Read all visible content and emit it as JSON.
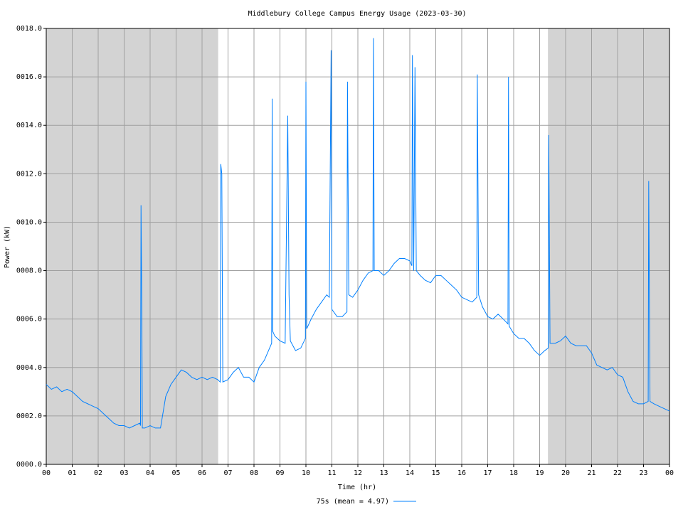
{
  "chart_data": {
    "type": "line",
    "title": "Middlebury College Campus Energy Usage (2023-03-30)",
    "x_label": "Time (hr)",
    "y_label": "Power (kW)",
    "xlim": [
      0,
      24
    ],
    "ylim": [
      0,
      18
    ],
    "xticks": [
      {
        "value": 0,
        "label": "00"
      },
      {
        "value": 1,
        "label": "01"
      },
      {
        "value": 2,
        "label": "02"
      },
      {
        "value": 3,
        "label": "03"
      },
      {
        "value": 4,
        "label": "04"
      },
      {
        "value": 5,
        "label": "05"
      },
      {
        "value": 6,
        "label": "06"
      },
      {
        "value": 7,
        "label": "07"
      },
      {
        "value": 8,
        "label": "08"
      },
      {
        "value": 9,
        "label": "09"
      },
      {
        "value": 10,
        "label": "10"
      },
      {
        "value": 11,
        "label": "11"
      },
      {
        "value": 12,
        "label": "12"
      },
      {
        "value": 13,
        "label": "13"
      },
      {
        "value": 14,
        "label": "14"
      },
      {
        "value": 15,
        "label": "15"
      },
      {
        "value": 16,
        "label": "16"
      },
      {
        "value": 17,
        "label": "17"
      },
      {
        "value": 18,
        "label": "18"
      },
      {
        "value": 19,
        "label": "19"
      },
      {
        "value": 20,
        "label": "20"
      },
      {
        "value": 21,
        "label": "21"
      },
      {
        "value": 22,
        "label": "22"
      },
      {
        "value": 23,
        "label": "23"
      },
      {
        "value": 24,
        "label": "00"
      }
    ],
    "yticks": [
      {
        "value": 0,
        "label": "0000.0"
      },
      {
        "value": 2,
        "label": "0002.0"
      },
      {
        "value": 4,
        "label": "0004.0"
      },
      {
        "value": 6,
        "label": "0006.0"
      },
      {
        "value": 8,
        "label": "0008.0"
      },
      {
        "value": 10,
        "label": "0010.0"
      },
      {
        "value": 12,
        "label": "0012.0"
      },
      {
        "value": 14,
        "label": "0014.0"
      },
      {
        "value": 16,
        "label": "0016.0"
      },
      {
        "value": 18,
        "label": "0018.0"
      }
    ],
    "grid": true,
    "shaded_regions": [
      [
        0,
        6.62
      ],
      [
        19.32,
        24
      ]
    ],
    "shade_color": "#d3d3d3",
    "legend": "bottom",
    "x": [
      0,
      0.2,
      0.4,
      0.6,
      0.8,
      1.0,
      1.2,
      1.4,
      1.6,
      1.8,
      2.0,
      2.2,
      2.4,
      2.6,
      2.8,
      3.0,
      3.2,
      3.4,
      3.6,
      3.63,
      3.65,
      3.68,
      3.7,
      3.8,
      4.0,
      4.2,
      4.4,
      4.6,
      4.8,
      5.0,
      5.2,
      5.4,
      5.6,
      5.8,
      6.0,
      6.2,
      6.4,
      6.6,
      6.7,
      6.72,
      6.76,
      6.8,
      7.0,
      7.2,
      7.4,
      7.6,
      7.8,
      8.0,
      8.2,
      8.4,
      8.6,
      8.68,
      8.7,
      8.72,
      8.8,
      9.0,
      9.2,
      9.3,
      9.35,
      9.4,
      9.6,
      9.8,
      9.98,
      10.0,
      10.03,
      10.2,
      10.4,
      10.6,
      10.8,
      10.9,
      10.97,
      11.0,
      11.2,
      11.4,
      11.58,
      11.6,
      11.65,
      11.8,
      12.0,
      12.2,
      12.4,
      12.58,
      12.6,
      12.63,
      12.8,
      13.0,
      13.2,
      13.4,
      13.6,
      13.8,
      14.0,
      14.08,
      14.1,
      14.15,
      14.2,
      14.25,
      14.4,
      14.6,
      14.8,
      15.0,
      15.2,
      15.4,
      15.6,
      15.8,
      16.0,
      16.2,
      16.4,
      16.58,
      16.6,
      16.65,
      16.8,
      17.0,
      17.2,
      17.4,
      17.6,
      17.78,
      17.8,
      17.83,
      18.0,
      18.2,
      18.4,
      18.6,
      18.8,
      19.0,
      19.2,
      19.33,
      19.35,
      19.4,
      19.6,
      19.8,
      20.0,
      20.2,
      20.4,
      20.6,
      20.8,
      21.0,
      21.2,
      21.4,
      21.6,
      21.8,
      22.0,
      22.2,
      22.4,
      22.6,
      22.8,
      23.0,
      23.18,
      23.2,
      23.25,
      23.4,
      23.6,
      23.8,
      24.0
    ],
    "series": [
      {
        "name": "75s (mean = 4.97)",
        "color": "#0080ff",
        "values": [
          3.3,
          3.1,
          3.2,
          3.0,
          3.1,
          3.0,
          2.8,
          2.6,
          2.5,
          2.4,
          2.3,
          2.1,
          1.9,
          1.7,
          1.6,
          1.6,
          1.5,
          1.6,
          1.7,
          1.6,
          10.7,
          6.5,
          1.5,
          1.5,
          1.6,
          1.5,
          1.5,
          2.8,
          3.3,
          3.6,
          3.9,
          3.8,
          3.6,
          3.5,
          3.6,
          3.5,
          3.6,
          3.5,
          3.4,
          12.4,
          12.0,
          3.4,
          3.5,
          3.8,
          4.0,
          3.6,
          3.6,
          3.4,
          4.0,
          4.3,
          4.8,
          5.0,
          15.1,
          5.5,
          5.3,
          5.1,
          5.0,
          14.4,
          7.0,
          5.1,
          4.7,
          4.8,
          5.2,
          15.8,
          5.6,
          6.0,
          6.4,
          6.7,
          7.0,
          6.9,
          17.1,
          6.4,
          6.1,
          6.1,
          6.3,
          15.8,
          7.0,
          6.9,
          7.2,
          7.6,
          7.9,
          8.0,
          17.6,
          8.0,
          8.0,
          7.8,
          8.0,
          8.3,
          8.5,
          8.5,
          8.4,
          8.2,
          16.9,
          8.0,
          16.4,
          8.0,
          7.8,
          7.6,
          7.5,
          7.8,
          7.8,
          7.6,
          7.4,
          7.2,
          6.9,
          6.8,
          6.7,
          6.9,
          16.1,
          7.0,
          6.5,
          6.1,
          6.0,
          6.2,
          6.0,
          5.8,
          16.0,
          5.7,
          5.4,
          5.2,
          5.2,
          5.0,
          4.7,
          4.5,
          4.7,
          4.8,
          13.6,
          5.0,
          5.0,
          5.1,
          5.3,
          5.0,
          4.9,
          4.9,
          4.9,
          4.6,
          4.1,
          4.0,
          3.9,
          4.0,
          3.7,
          3.6,
          3.0,
          2.6,
          2.5,
          2.5,
          2.6,
          11.7,
          2.6,
          2.5,
          2.4,
          2.3,
          2.2
        ]
      }
    ]
  }
}
